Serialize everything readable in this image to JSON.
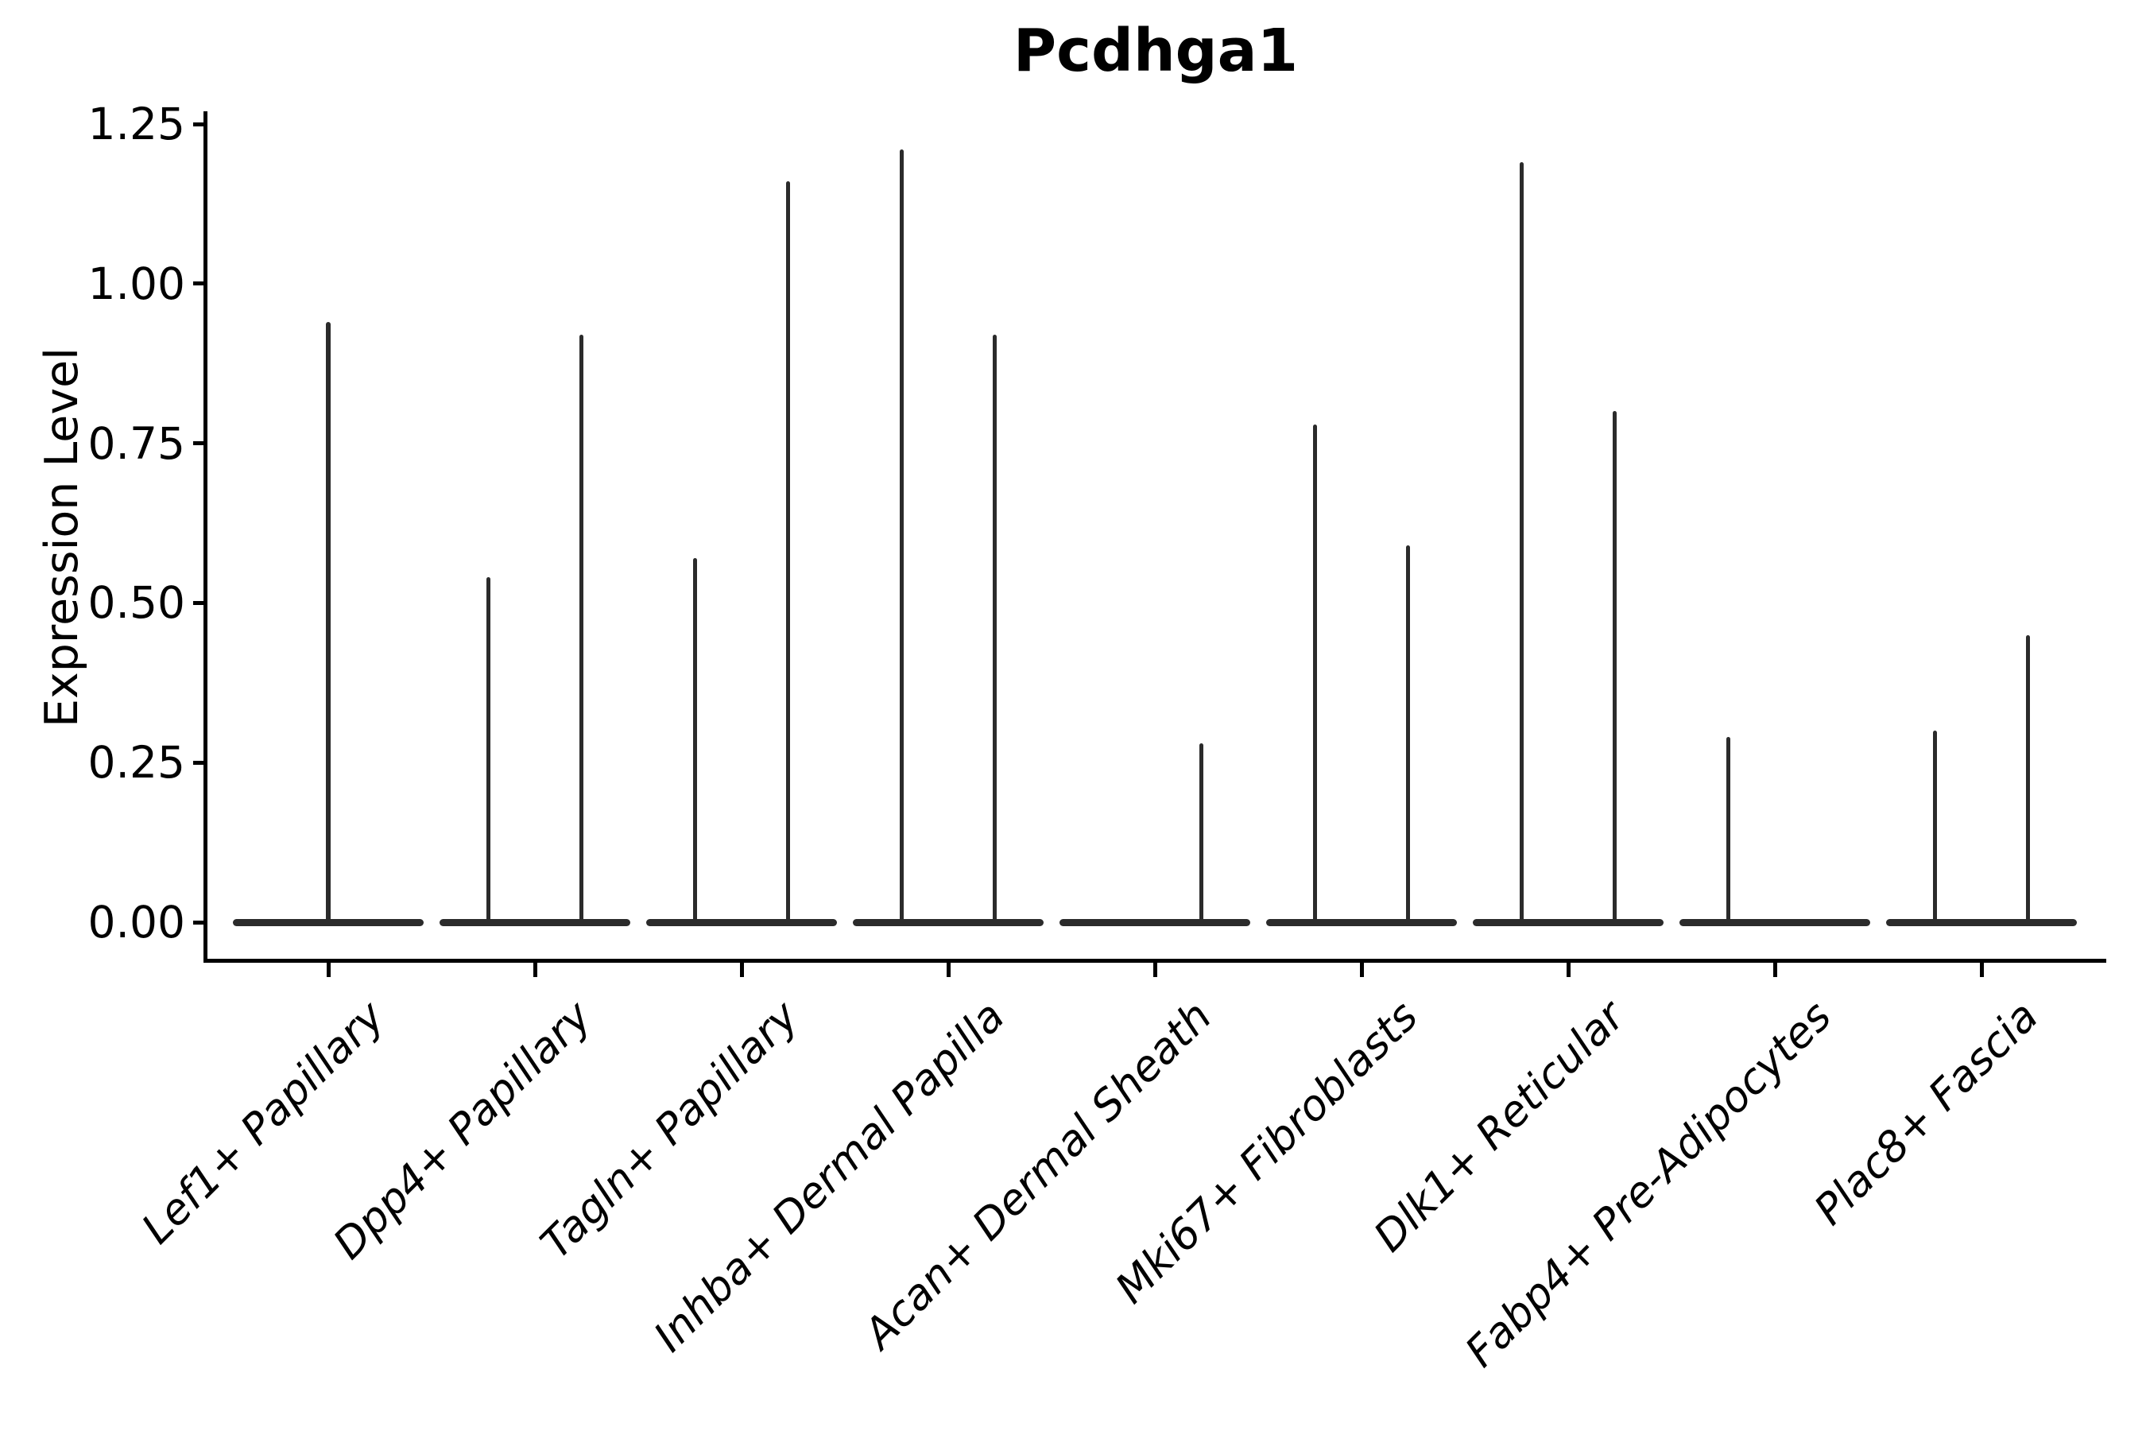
{
  "chart_data": {
    "type": "violin",
    "title": "Pcdhga1",
    "ylabel": "Expression Level",
    "xlabel": "",
    "yticks": [
      "1.25",
      "1.00",
      "0.75",
      "0.50",
      "0.25",
      "0.00"
    ],
    "ylim": [
      -0.06,
      1.27
    ],
    "grid": false,
    "legend": "none",
    "base_halfwidth": 0.46,
    "colors": {
      "violin": "#2b2b2b",
      "axis": "#000000",
      "text": "#000000",
      "background": "#ffffff"
    },
    "categories": [
      {
        "label": "Lef1+ Papillary",
        "violins": [
          {
            "offset": 0,
            "max": 0.94
          }
        ]
      },
      {
        "label": "Dpp4+ Papillary",
        "violins": [
          {
            "offset": -0.225,
            "max": 0.54
          },
          {
            "offset": 0.225,
            "max": 0.92
          }
        ]
      },
      {
        "label": "Tagln+ Papillary",
        "violins": [
          {
            "offset": -0.225,
            "max": 0.57
          },
          {
            "offset": 0.225,
            "max": 1.16
          }
        ]
      },
      {
        "label": "Inhba+ Dermal Papilla",
        "violins": [
          {
            "offset": -0.225,
            "max": 1.21
          },
          {
            "offset": 0.225,
            "max": 0.92
          }
        ]
      },
      {
        "label": "Acan+ Dermal Sheath",
        "violins": [
          {
            "offset": -0.225,
            "max": 0
          },
          {
            "offset": 0.225,
            "max": 0.28
          }
        ]
      },
      {
        "label": "Mki67+ Fibroblasts",
        "violins": [
          {
            "offset": -0.225,
            "max": 0.78
          },
          {
            "offset": 0.225,
            "max": 0.59
          }
        ]
      },
      {
        "label": "Dlk1+ Reticular",
        "violins": [
          {
            "offset": -0.225,
            "max": 1.19
          },
          {
            "offset": 0.225,
            "max": 0.8
          }
        ]
      },
      {
        "label": "Fabp4+ Pre-Adipocytes",
        "violins": [
          {
            "offset": -0.225,
            "max": 0.29
          },
          {
            "offset": 0.225,
            "max": 0
          }
        ]
      },
      {
        "label": "Plac8+ Fascia",
        "violins": [
          {
            "offset": -0.225,
            "max": 0.3
          },
          {
            "offset": 0.225,
            "max": 0.45
          }
        ]
      }
    ]
  }
}
